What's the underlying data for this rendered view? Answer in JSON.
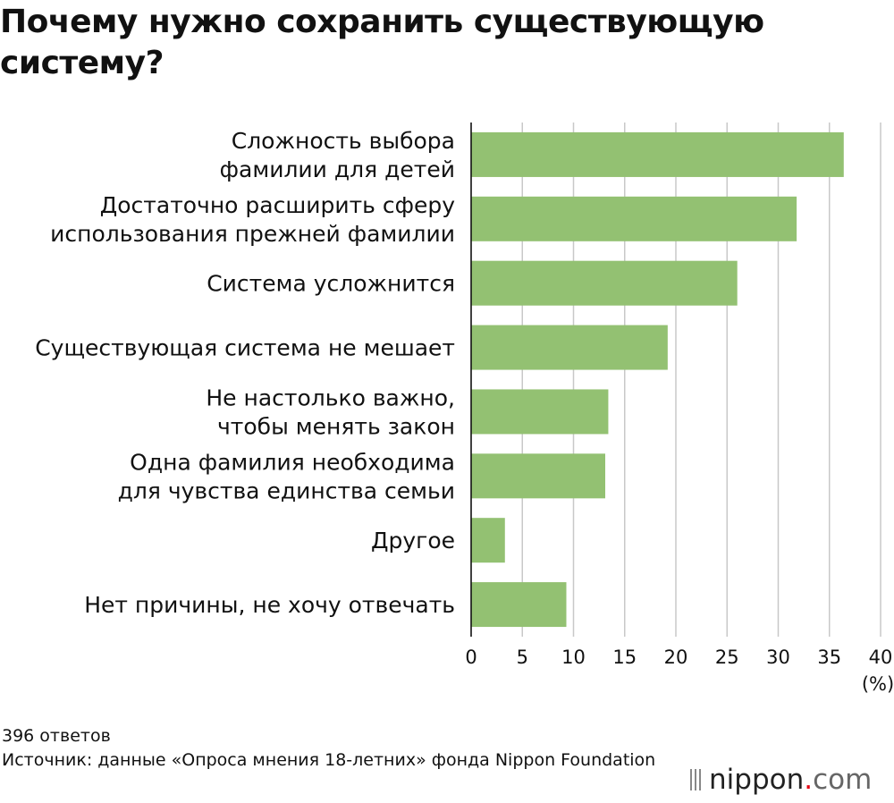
{
  "chart_data": {
    "type": "bar",
    "orientation": "horizontal",
    "title": "Почему нужно сохранить существующую систему?",
    "categories": [
      [
        "Сложность выбора",
        "фамилии для детей"
      ],
      [
        "Достаточно расширить сферу",
        "использования прежней фамилии"
      ],
      [
        "Система усложнится"
      ],
      [
        "Существующая система не мешает"
      ],
      [
        "Не настолько важно,",
        "чтобы менять закон"
      ],
      [
        "Одна фамилия необходима",
        "для чувства единства семьи"
      ],
      [
        "Другое"
      ],
      [
        "Нет причины, не хочу отвечать"
      ]
    ],
    "values": [
      36.4,
      31.8,
      26.0,
      19.2,
      13.4,
      13.1,
      3.3,
      9.3
    ],
    "xlim": [
      0,
      40
    ],
    "xticks": [
      "0",
      "5",
      "10",
      "15",
      "20",
      "25",
      "30",
      "35",
      "40"
    ],
    "xunit": "(%)",
    "bar_color": "#93c172",
    "grid_color": "#c8c8c8",
    "grid": true
  },
  "footer": {
    "responses": "396 ответов",
    "source": "Источник: данные «Опроса мнения 18-летних» фонда Nippon Foundation"
  },
  "logo": {
    "name": "nippon",
    "dot": ".",
    "tld": "com"
  }
}
